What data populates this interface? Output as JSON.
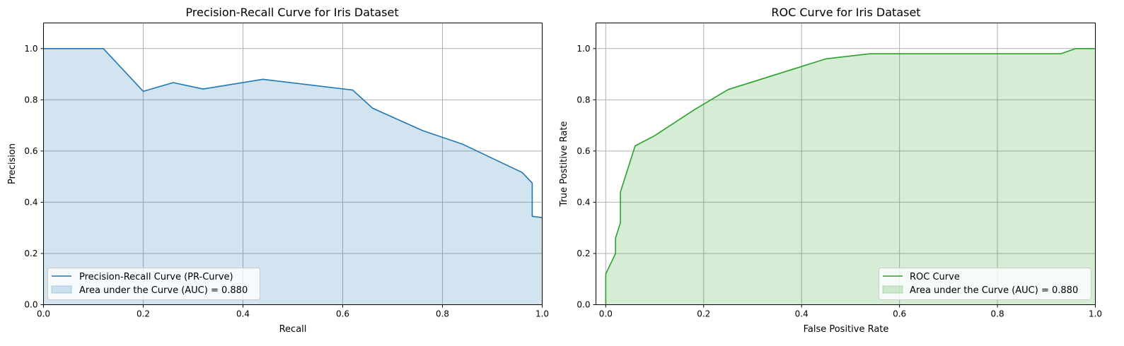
{
  "chart_data": [
    {
      "type": "area",
      "title": "Precision-Recall Curve for Iris Dataset",
      "xlabel": "Recall",
      "ylabel": "Precision",
      "xlim": [
        0,
        1.0
      ],
      "ylim": [
        0,
        1.1
      ],
      "xticks": [
        "0.0",
        "0.2",
        "0.4",
        "0.6",
        "0.8",
        "1.0"
      ],
      "yticks": [
        "0.0",
        "0.2",
        "0.4",
        "0.6",
        "0.8",
        "1.0"
      ],
      "grid": true,
      "legend_position": "lower-left",
      "line_color": "#1f77b4",
      "fill_color": "#1f77b4",
      "series": [
        {
          "name": "Precision-Recall Curve (PR-Curve)",
          "fill_name": "Area under the Curve (AUC) = 0.880",
          "x": [
            0.0,
            0.12,
            0.2,
            0.26,
            0.32,
            0.44,
            0.62,
            0.66,
            0.76,
            0.84,
            0.96,
            0.98,
            0.98,
            1.0
          ],
          "y": [
            1.0,
            1.0,
            0.833,
            0.867,
            0.842,
            0.88,
            0.838,
            0.767,
            0.68,
            0.627,
            0.516,
            0.475,
            0.345,
            0.34
          ]
        }
      ]
    },
    {
      "type": "area",
      "title": "ROC Curve for Iris Dataset",
      "xlabel": "False Positive Rate",
      "ylabel": "True Postitive Rate",
      "xlim": [
        -0.02,
        1.0
      ],
      "ylim": [
        0,
        1.1
      ],
      "xticks": [
        "0.0",
        "0.2",
        "0.4",
        "0.6",
        "0.8",
        "1.0"
      ],
      "yticks": [
        "0.0",
        "0.2",
        "0.4",
        "0.6",
        "0.8",
        "1.0"
      ],
      "grid": true,
      "legend_position": "lower-right",
      "line_color": "#2ca02c",
      "fill_color": "#2ca02c",
      "series": [
        {
          "name": "ROC Curve",
          "fill_name": "Area under the Curve (AUC) = 0.880",
          "x": [
            0.0,
            0.0,
            0.02,
            0.02,
            0.03,
            0.03,
            0.06,
            0.1,
            0.18,
            0.25,
            0.45,
            0.54,
            0.93,
            0.96,
            1.0
          ],
          "y": [
            0.0,
            0.12,
            0.2,
            0.26,
            0.32,
            0.44,
            0.62,
            0.66,
            0.76,
            0.84,
            0.96,
            0.98,
            0.98,
            1.0,
            1.0
          ]
        }
      ]
    }
  ]
}
